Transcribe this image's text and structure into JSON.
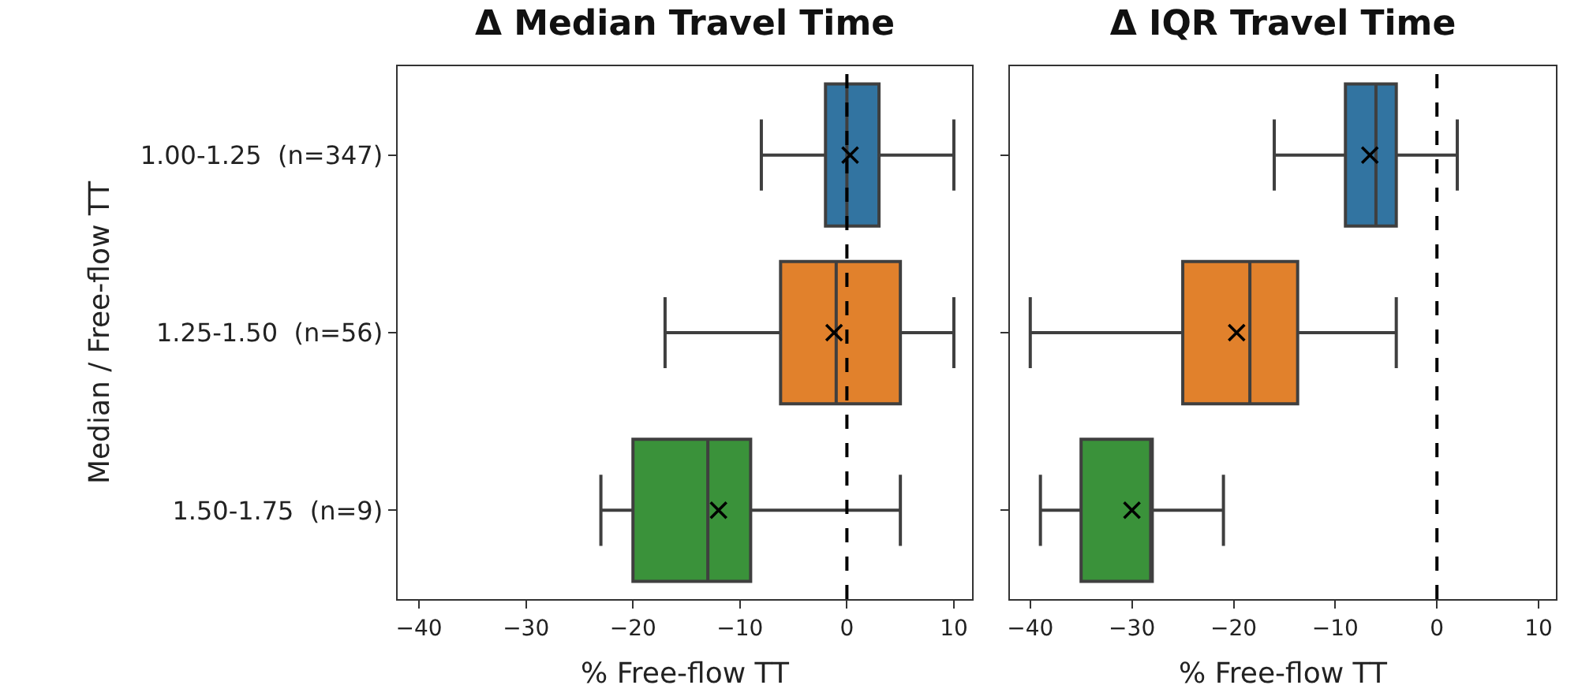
{
  "chart_data": [
    {
      "type": "box",
      "orientation": "horizontal",
      "title": "Δ Median Travel Time",
      "xlabel": "% Free-flow TT",
      "ylabel": "Median / Free-flow TT",
      "categories": [
        "1.00-1.25  (n=347)",
        "1.25-1.50  (n=56)",
        "1.50-1.75  (n=9)"
      ],
      "colors": [
        "#3274a1",
        "#e1812c",
        "#3a923a"
      ],
      "boxes": [
        {
          "low": -8,
          "q1": -2,
          "median": 0,
          "q3": 3,
          "high": 10,
          "mean": 0.3
        },
        {
          "low": -17,
          "q1": -6.2,
          "median": -1,
          "q3": 5,
          "high": 10,
          "mean": -1.2
        },
        {
          "low": -23,
          "q1": -20,
          "median": -13,
          "q3": -9,
          "high": 5,
          "mean": -12
        }
      ],
      "marker": "cross",
      "xlim": [
        -42,
        11.7
      ],
      "xticks": [
        -40,
        -30,
        -20,
        -10,
        0,
        10
      ],
      "ref_lines": [
        {
          "axis": "x",
          "value": 0,
          "color": "#000000",
          "line_style": "dashed"
        }
      ]
    },
    {
      "type": "box",
      "orientation": "horizontal",
      "title": "Δ IQR Travel Time",
      "xlabel": "% Free-flow TT",
      "categories": [
        null,
        null,
        null
      ],
      "colors": [
        "#3274a1",
        "#e1812c",
        "#3a923a"
      ],
      "boxes": [
        {
          "low": -16,
          "q1": -9,
          "median": -6,
          "q3": -4,
          "high": 2,
          "mean": -6.6
        },
        {
          "low": -40,
          "q1": -25,
          "median": -18.4,
          "q3": -13.7,
          "high": -4,
          "mean": -19.7
        },
        {
          "low": -39,
          "q1": -35,
          "median": -28,
          "q3": -28,
          "high": -21,
          "mean": -30
        }
      ],
      "marker": "cross",
      "xlim": [
        -42,
        11.7
      ],
      "xticks": [
        -40,
        -30,
        -20,
        -10,
        0,
        10
      ],
      "ref_lines": [
        {
          "axis": "x",
          "value": 0,
          "color": "#000000",
          "line_style": "dashed"
        }
      ]
    }
  ]
}
